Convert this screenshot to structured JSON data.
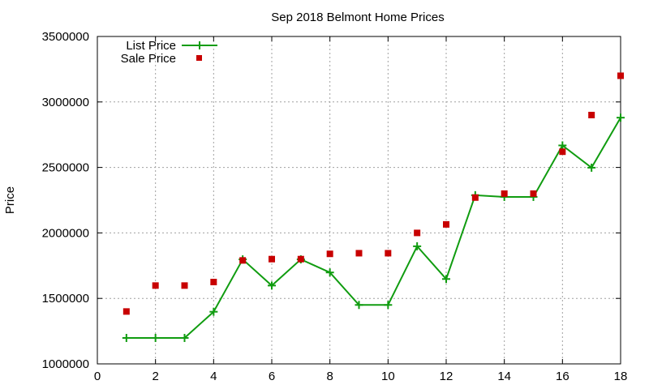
{
  "chart_data": {
    "type": "line",
    "title": "Sep 2018 Belmont Home Prices",
    "xlabel": "",
    "ylabel": "Price",
    "xlim": [
      0,
      18
    ],
    "ylim": [
      1000000,
      3500000
    ],
    "x_ticks": [
      0,
      2,
      4,
      6,
      8,
      10,
      12,
      14,
      16,
      18
    ],
    "y_ticks": [
      1000000,
      1500000,
      2000000,
      2500000,
      3000000,
      3500000
    ],
    "grid": true,
    "legend_position": "top-left",
    "x": [
      1,
      2,
      3,
      4,
      5,
      6,
      7,
      8,
      9,
      10,
      11,
      12,
      13,
      14,
      15,
      16,
      17,
      18
    ],
    "series": [
      {
        "name": "List Price",
        "style": "line-with-plus-markers",
        "color": "#109c10",
        "values": [
          1198000,
          1198000,
          1198000,
          1398000,
          1798000,
          1598000,
          1798000,
          1698000,
          1450000,
          1450000,
          1898000,
          1648000,
          2288000,
          2275000,
          2275000,
          2668000,
          2498000,
          2880000
        ]
      },
      {
        "name": "Sale Price",
        "style": "square-markers",
        "color": "#c80000",
        "values": [
          1400000,
          1598000,
          1598000,
          1625000,
          1790000,
          1800000,
          1800000,
          1840000,
          1845000,
          1845000,
          2000000,
          2065000,
          2270000,
          2300000,
          2300000,
          2620000,
          2900000,
          3200000
        ]
      }
    ]
  }
}
